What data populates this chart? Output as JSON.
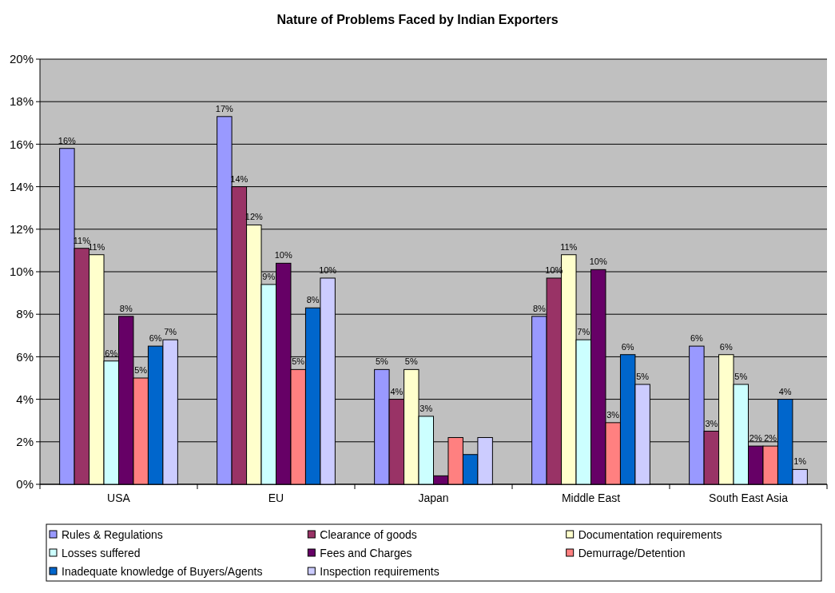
{
  "chart_data": {
    "type": "bar",
    "title": "Nature of Problems Faced by Indian Exporters",
    "categories": [
      "USA",
      "EU",
      "Japan",
      "Middle East",
      "South East Asia"
    ],
    "series": [
      {
        "name": "Rules & Regulations",
        "color": "#9999ff",
        "values": [
          15.8,
          17.3,
          5.4,
          7.9,
          6.5
        ],
        "value_labels": [
          "16%",
          "17%",
          "5%",
          "8%",
          "6%"
        ]
      },
      {
        "name": "Clearance of goods",
        "color": "#993366",
        "values": [
          11.1,
          14.0,
          4.0,
          9.7,
          2.5
        ],
        "value_labels": [
          "11%",
          "14%",
          "4%",
          "10%",
          "3%"
        ]
      },
      {
        "name": "Documentation requirements",
        "color": "#ffffcc",
        "values": [
          10.8,
          12.2,
          5.4,
          10.8,
          6.1
        ],
        "value_labels": [
          "11%",
          "12%",
          "5%",
          "11%",
          "6%"
        ]
      },
      {
        "name": "Losses suffered",
        "color": "#ccffff",
        "values": [
          5.8,
          9.4,
          3.2,
          6.8,
          4.7
        ],
        "value_labels": [
          "6%",
          "9%",
          "3%",
          "7%",
          "5%"
        ]
      },
      {
        "name": "Fees and Charges",
        "color": "#660066",
        "values": [
          7.9,
          10.4,
          0.4,
          10.1,
          1.8
        ],
        "value_labels": [
          "8%",
          "10%",
          null,
          "10%",
          "2%"
        ]
      },
      {
        "name": "Demurrage/Detention",
        "color": "#ff8080",
        "values": [
          5.0,
          5.4,
          2.2,
          2.9,
          1.8
        ],
        "value_labels": [
          "5%",
          "5%",
          null,
          "3%",
          "2%"
        ]
      },
      {
        "name": "Inadequate knowledge of Buyers/Agents",
        "color": "#0066cc",
        "values": [
          6.5,
          8.3,
          1.4,
          6.1,
          4.0
        ],
        "value_labels": [
          "6%",
          "8%",
          null,
          "6%",
          "4%"
        ]
      },
      {
        "name": "Inspection requirements",
        "color": "#ccccff",
        "values": [
          6.8,
          9.7,
          2.2,
          4.7,
          0.7
        ],
        "value_labels": [
          "7%",
          "10%",
          null,
          "5%",
          "1%"
        ]
      }
    ],
    "ylim": [
      0,
      20
    ],
    "yticks": [
      {
        "value": 0,
        "label": "0%"
      },
      {
        "value": 2,
        "label": "2%"
      },
      {
        "value": 4,
        "label": "4%"
      },
      {
        "value": 6,
        "label": "6%"
      },
      {
        "value": 8,
        "label": "8%"
      },
      {
        "value": 10,
        "label": "10%"
      },
      {
        "value": 12,
        "label": "12%"
      },
      {
        "value": 14,
        "label": "14%"
      },
      {
        "value": 16,
        "label": "16%"
      },
      {
        "value": 18,
        "label": "18%"
      },
      {
        "value": 20,
        "label": "20%"
      }
    ],
    "grid": "y",
    "legend": "bottom"
  }
}
